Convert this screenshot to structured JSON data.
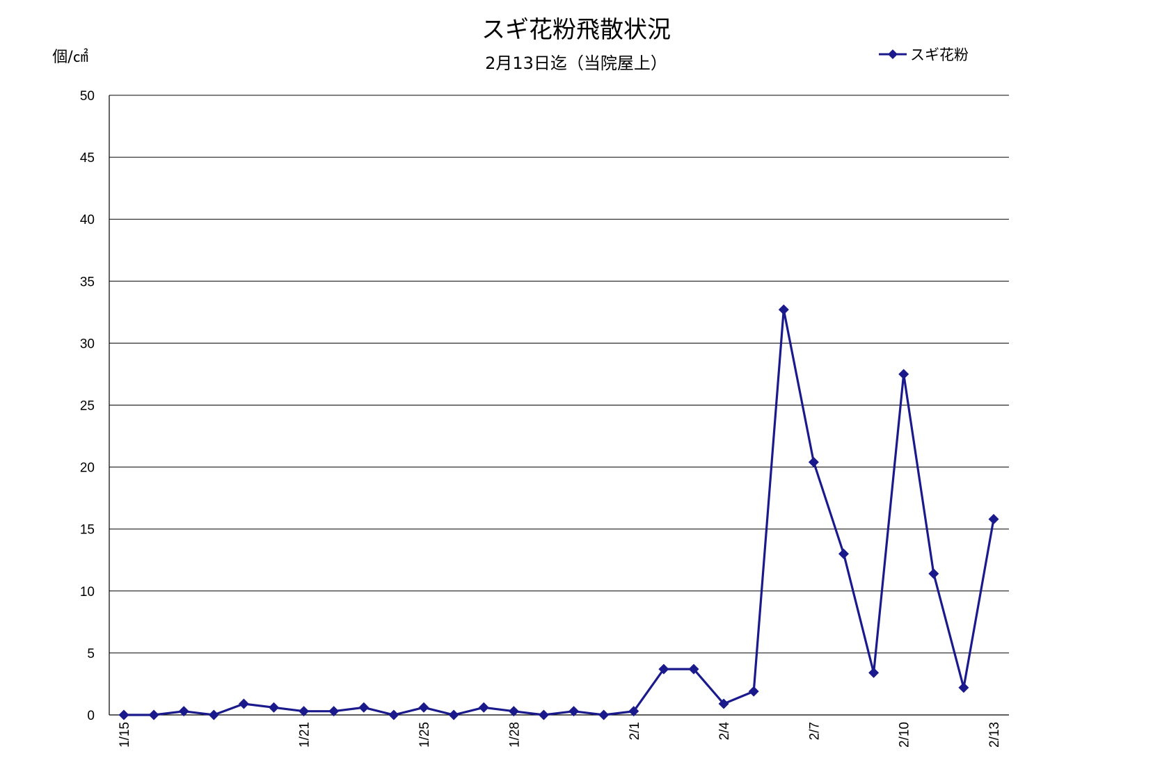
{
  "chart_data": {
    "type": "line",
    "title": "スギ花粉飛散状況",
    "subtitle": "2月13日迄（当院屋上）",
    "ylabel": "個/㎠",
    "xlabel": "",
    "ylim": [
      0,
      50
    ],
    "yticks": [
      0,
      5,
      10,
      15,
      20,
      25,
      30,
      35,
      40,
      45,
      50
    ],
    "grid": true,
    "legend_position": "top-right",
    "line_color": "#1a1a8c",
    "x": [
      "1/15",
      "1/16",
      "1/17",
      "1/18",
      "1/19",
      "1/20",
      "1/21",
      "1/22",
      "1/23",
      "1/24",
      "1/25",
      "1/26",
      "1/27",
      "1/28",
      "1/29",
      "1/30",
      "1/31",
      "2/1",
      "2/2",
      "2/3",
      "2/4",
      "2/5",
      "2/6",
      "2/7",
      "2/8",
      "2/9",
      "2/10",
      "2/11",
      "2/12",
      "2/13"
    ],
    "x_tick_labels": [
      "1/15",
      "",
      "",
      "",
      "",
      "",
      "1/21",
      "",
      "",
      "",
      "1/25",
      "",
      "",
      "1/28",
      "",
      "",
      "",
      "2/1",
      "",
      "",
      "2/4",
      "",
      "",
      "2/7",
      "",
      "",
      "2/10",
      "",
      "",
      "2/13"
    ],
    "series": [
      {
        "name": "スギ花粉",
        "values": [
          0,
          0,
          0.3,
          0,
          0.9,
          0.6,
          0.3,
          0.3,
          0.6,
          0,
          0.6,
          0,
          0.6,
          0.3,
          0,
          0.3,
          0,
          0.3,
          3.7,
          3.7,
          0.9,
          1.9,
          32.7,
          20.4,
          13.0,
          3.4,
          27.5,
          11.4,
          2.2,
          15.8
        ]
      }
    ]
  }
}
